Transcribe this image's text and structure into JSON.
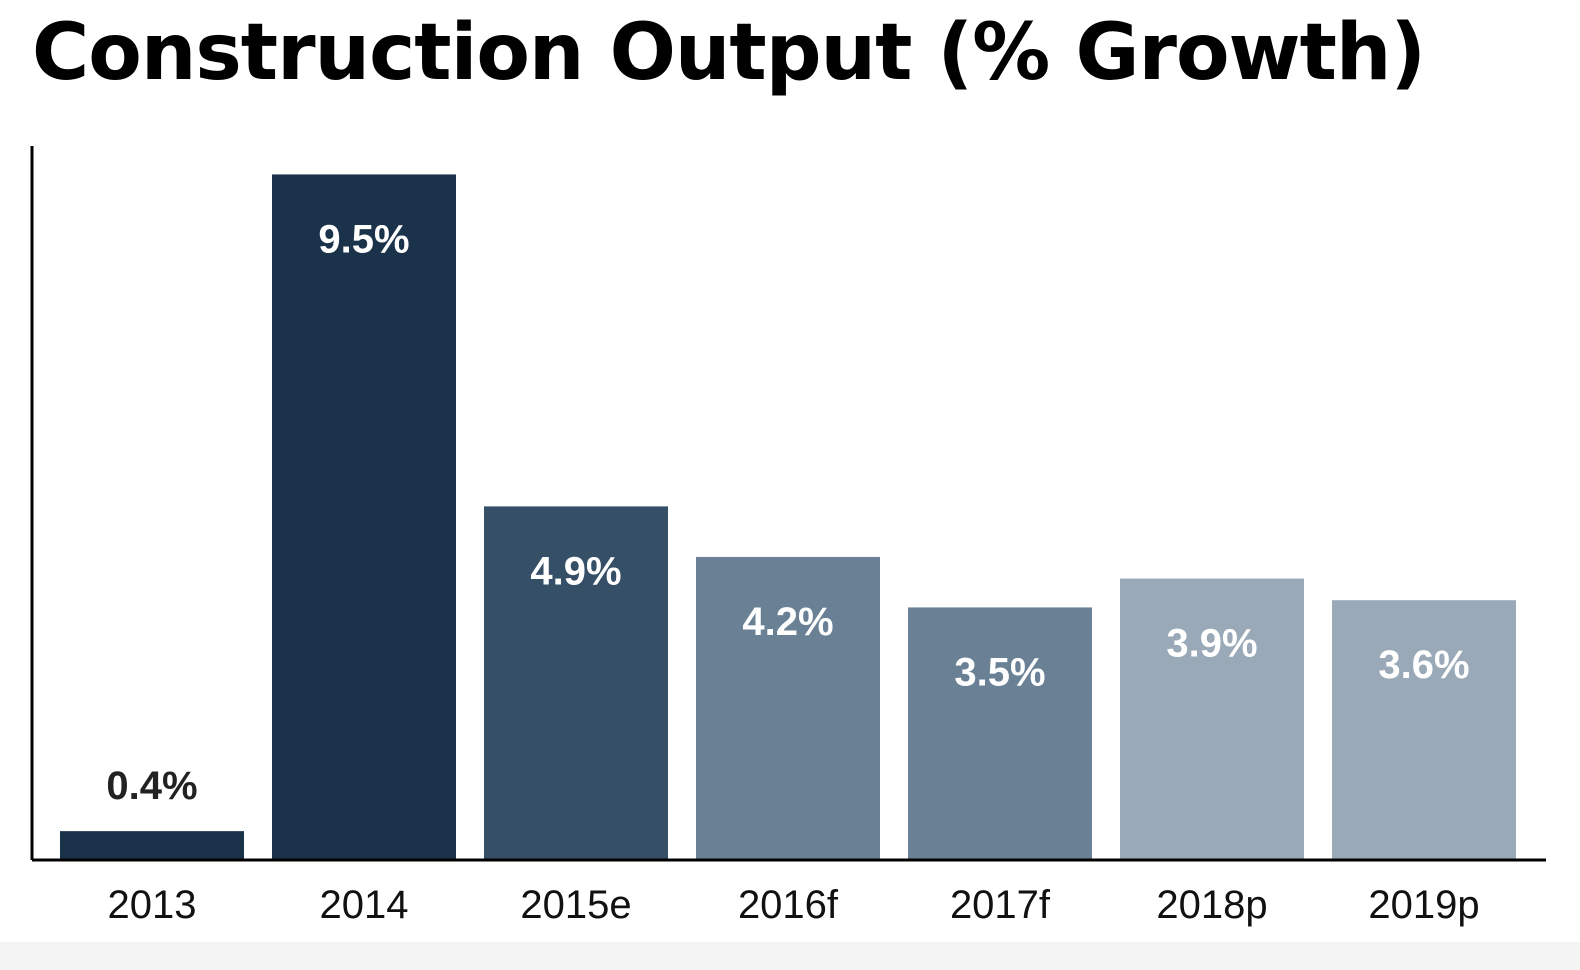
{
  "chart_data": {
    "type": "bar",
    "title": "Construction Output (% Growth)",
    "xlabel": "",
    "ylabel": "",
    "categories": [
      "2013",
      "2014",
      "2015e",
      "2016f",
      "2017f",
      "2018p",
      "2019p"
    ],
    "values": [
      0.4,
      9.5,
      4.9,
      4.2,
      3.5,
      3.9,
      3.6
    ],
    "data_labels": [
      "0.4%",
      "9.5%",
      "4.9%",
      "4.2%",
      "3.5%",
      "3.9%",
      "3.6%"
    ],
    "bar_colors": [
      "#1b324b",
      "#1b324b",
      "#354f66",
      "#6a8195",
      "#6a8195",
      "#9aa9b7",
      "#9aa9b7"
    ],
    "label_colors": [
      "#222222",
      "#ffffff",
      "#ffffff",
      "#ffffff",
      "#ffffff",
      "#ffffff",
      "#ffffff"
    ],
    "ylim": [
      0,
      9.7
    ],
    "grid": false,
    "legend": "none"
  }
}
